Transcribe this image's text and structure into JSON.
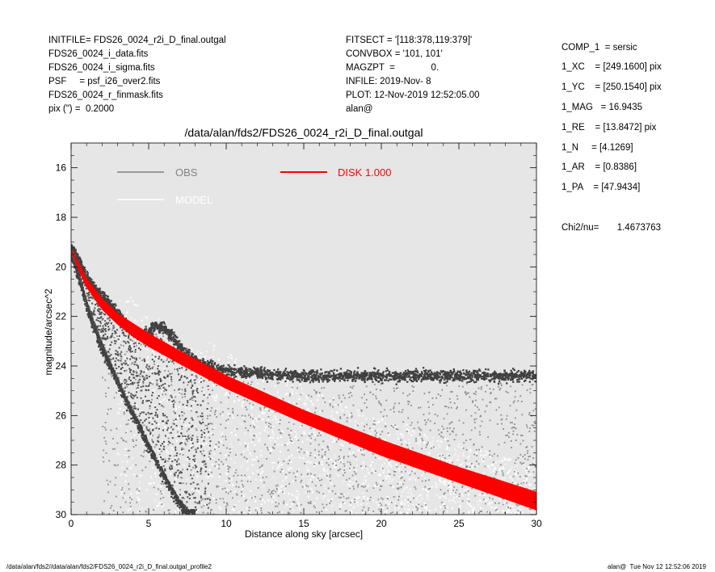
{
  "header": {
    "left": [
      "INITFILE= FDS26_0024_r2i_D_final.outgal",
      "FDS26_0024_i_data.fits",
      "FDS26_0024_i_sigma.fits",
      "PSF     = psf_i26_over2.fits",
      "FDS26_0024_r_finmask.fits",
      "pix (\") =  0.2000"
    ],
    "middle": [
      "FITSECT = '[118:378,119:379]'",
      "CONVBOX = '101, 101'",
      "MAGZPT  =              0.",
      "INFILE: 2019-Nov- 8",
      "PLOT: 12-Nov-2019 12:52:05.00",
      "alan@"
    ],
    "right": [
      "COMP_1  = sersic",
      "1_XC    = [249.1600] pix",
      "1_YC    = [250.1540] pix",
      "1_MAG   = 16.9435",
      "1_RE    = [13.8472] pix",
      "1_N     = [4.1269]",
      "1_AR    = [0.8386]",
      "1_PA    = [47.9434]"
    ],
    "chi2": "Chi2/nu=       1.4673763"
  },
  "footer": {
    "left": "/data/alan/fds2//data/alan/fds2/FDS26_0024_r2i_D_final.outgal_profile2",
    "right": "alan@  Tue Nov 12 12:52:06 2019"
  },
  "chart_data": {
    "type": "scatter",
    "title": "/data/alan/fds2/FDS26_0024_r2i_D_final.outgal",
    "xlabel": "Distance along sky [arcsec]",
    "ylabel": "magnitude/arcsec^2",
    "xlim": [
      0,
      30
    ],
    "ylim": [
      30,
      15
    ],
    "y_inverted": true,
    "xticks": [
      0,
      5,
      10,
      15,
      20,
      25,
      30
    ],
    "yticks": [
      16,
      18,
      20,
      22,
      24,
      26,
      28,
      30
    ],
    "background": "#e6e6e6",
    "grid": false,
    "legend": {
      "position": "top-left",
      "entries": [
        {
          "label": "OBS",
          "color": "#808080"
        },
        {
          "label": "DISK  1.000",
          "color": "#ff0000"
        },
        {
          "label": "MODEL",
          "color": "#ffffff"
        }
      ]
    },
    "series": [
      {
        "name": "OBS",
        "color": "#404040",
        "upper_envelope": {
          "x": [
            0,
            0.3,
            0.6,
            1,
            1.5,
            2,
            2.5,
            3,
            3.5,
            4,
            4.5,
            5,
            5.5,
            6,
            6.5,
            7,
            7.5,
            8,
            9,
            10,
            12,
            15,
            20,
            25,
            30
          ],
          "y": [
            19.3,
            19.5,
            19.9,
            20.4,
            20.9,
            21.2,
            21.5,
            21.9,
            22.3,
            22.6,
            22.8,
            22.6,
            22.4,
            22.5,
            22.8,
            23.2,
            23.5,
            23.8,
            24.0,
            24.2,
            24.3,
            24.4,
            24.4,
            24.4,
            24.4
          ]
        },
        "lower_envelope": {
          "x": [
            0,
            0.5,
            1,
            1.5,
            2,
            2.5,
            3,
            3.5,
            4,
            4.5,
            5,
            5.5,
            6,
            6.5,
            7,
            7.5,
            8
          ],
          "y": [
            19.4,
            20.4,
            21.6,
            22.5,
            23.3,
            24.0,
            24.7,
            25.4,
            26.0,
            26.6,
            27.3,
            27.9,
            28.5,
            29.1,
            29.6,
            30.0,
            30.0
          ]
        }
      },
      {
        "name": "DISK  1.000",
        "color": "#ff0000",
        "upper_curve": {
          "x": [
            0,
            0.5,
            1,
            2,
            3,
            4,
            5,
            7,
            10,
            15,
            20,
            25,
            30
          ],
          "y": [
            19.3,
            19.9,
            20.5,
            21.3,
            21.9,
            22.3,
            22.7,
            23.4,
            24.4,
            25.8,
            27.0,
            28.1,
            29.1
          ]
        },
        "lower_curve": {
          "x": [
            0,
            0.5,
            1,
            2,
            3,
            4,
            5,
            7,
            10,
            15,
            20,
            25,
            30
          ],
          "y": [
            19.3,
            20.1,
            20.8,
            21.7,
            22.3,
            22.8,
            23.2,
            23.9,
            24.9,
            26.3,
            27.6,
            28.7,
            29.8
          ]
        }
      }
    ]
  }
}
